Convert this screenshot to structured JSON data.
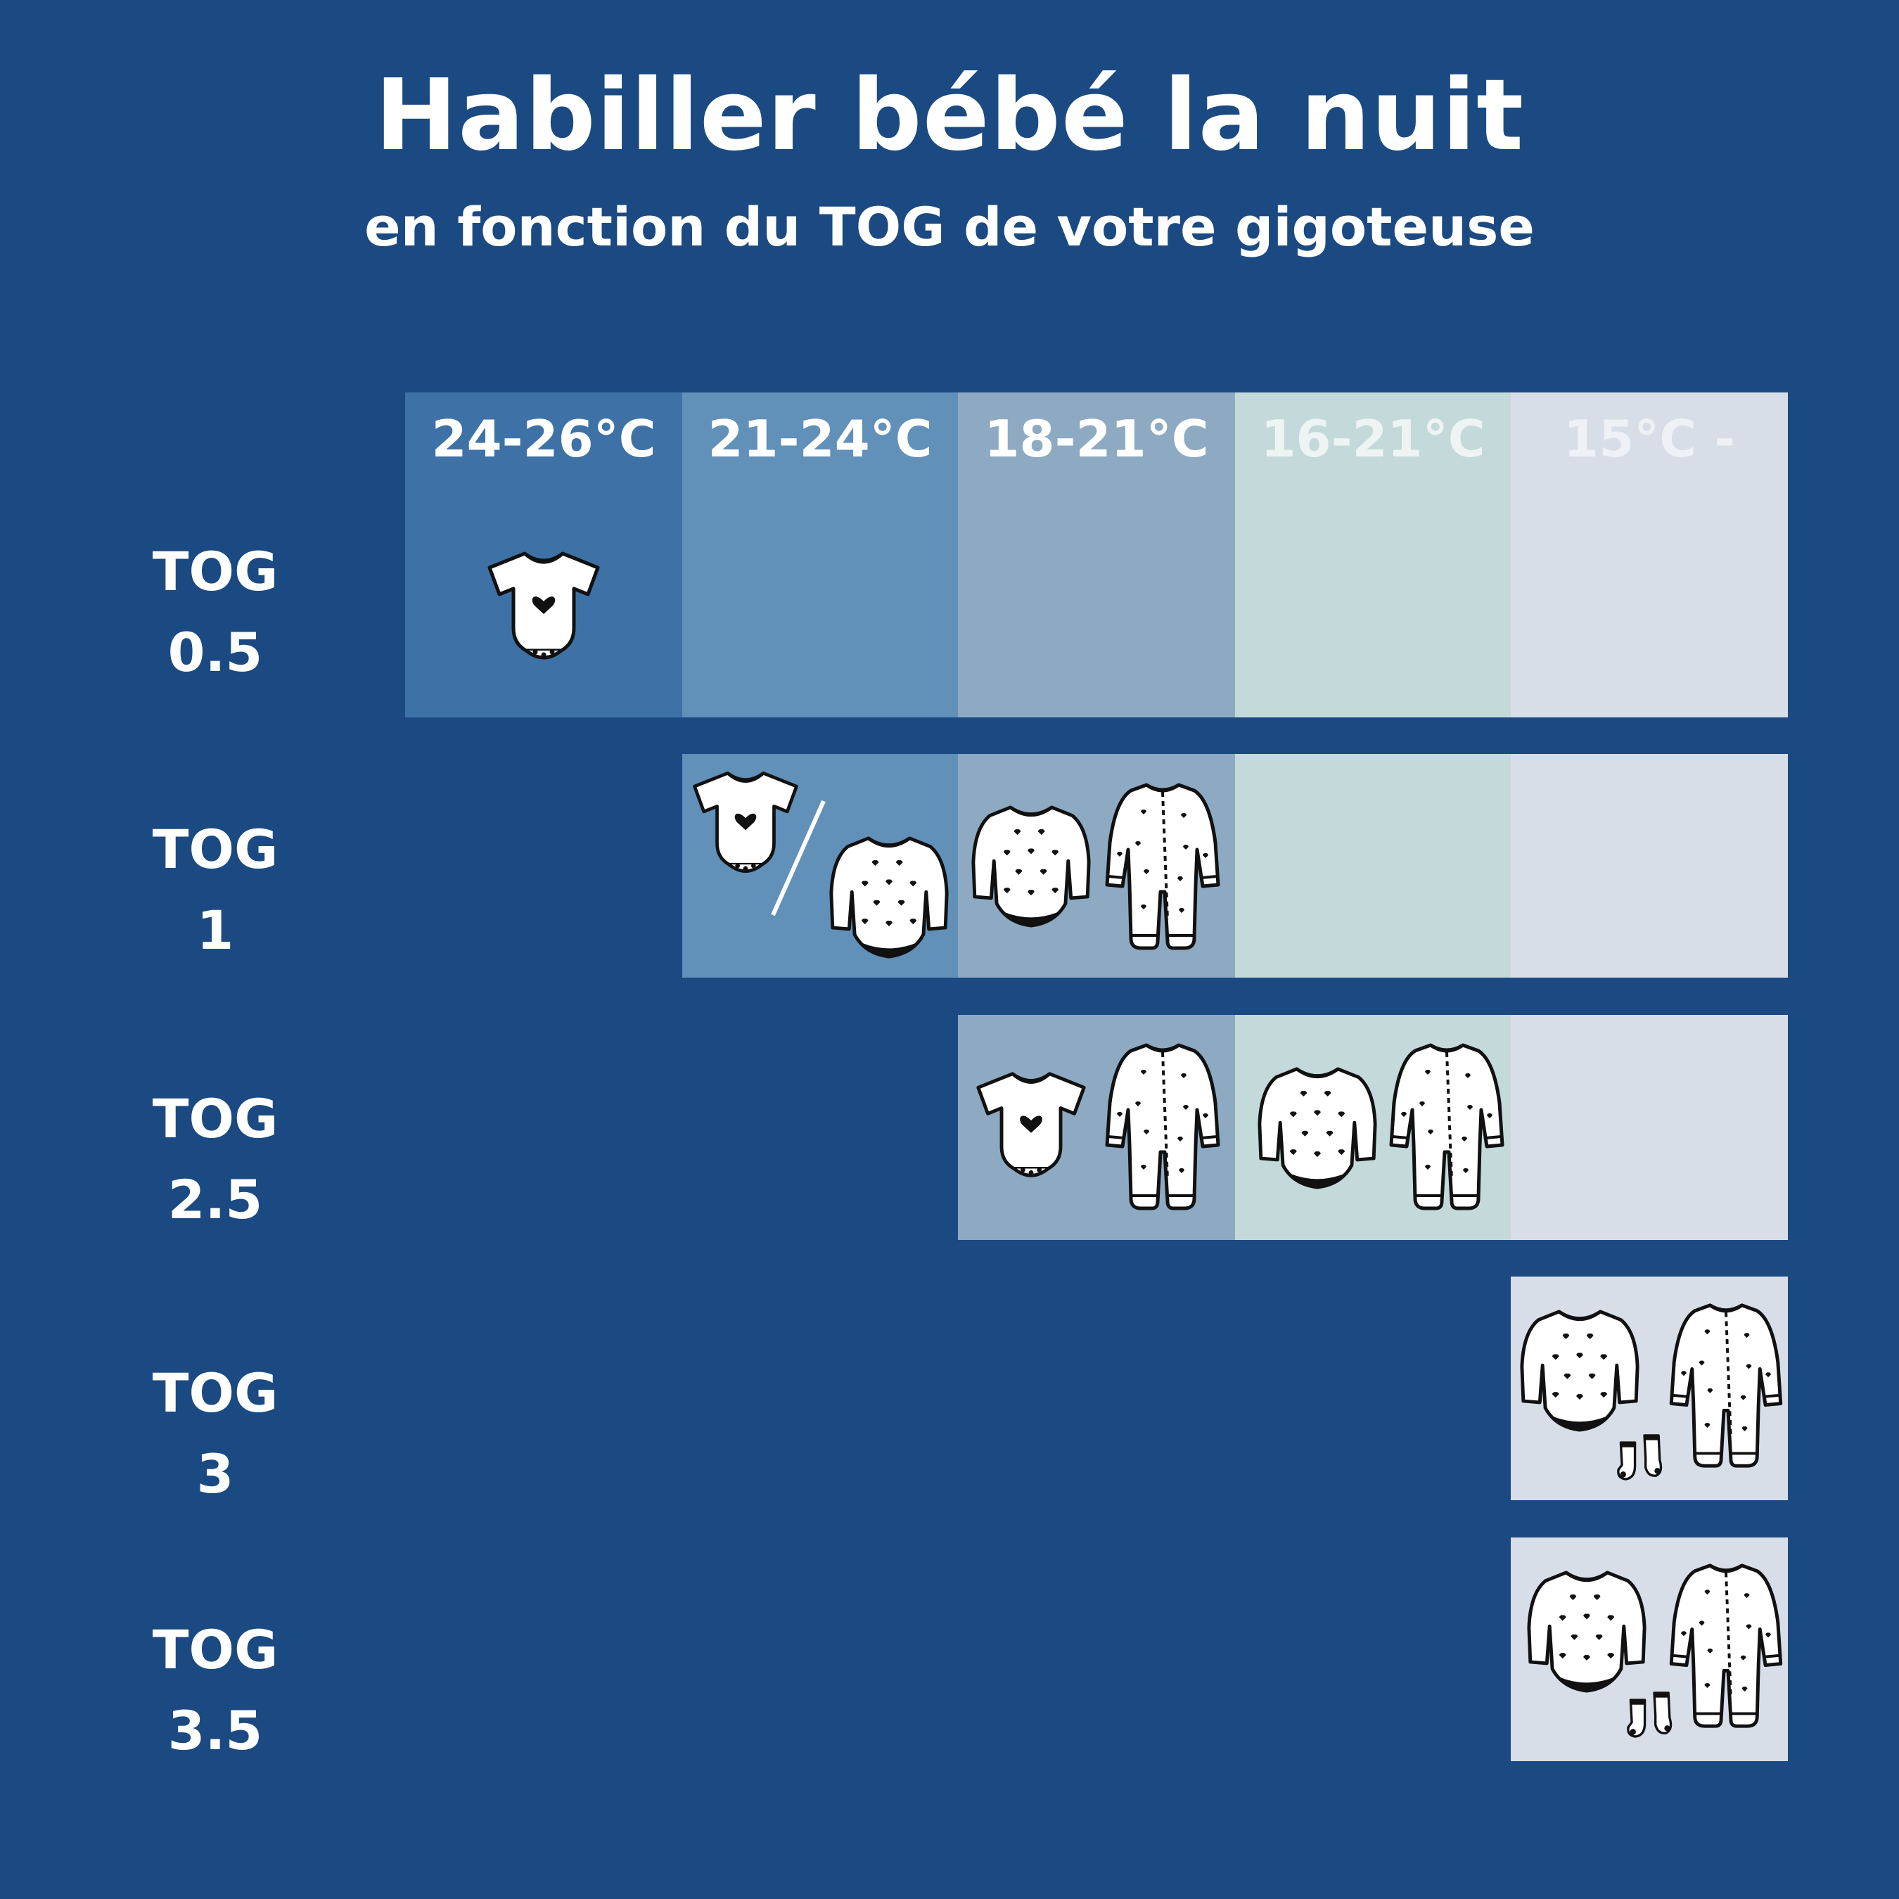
{
  "title": "Habiller bébé la nuit",
  "subtitle": "en fonction du TOG de votre gigoteuse",
  "columns": [
    {
      "label": "24-26°C",
      "color": "#3e72a6",
      "text_color": "#ffffff"
    },
    {
      "label": "21-24°C",
      "color": "#6190b8",
      "text_color": "#ffffff"
    },
    {
      "label": "18-21°C",
      "color": "#8eaac2",
      "text_color": "#ffffff"
    },
    {
      "label": "16-21°C",
      "color": "#c4dada",
      "text_color": "#eef4f4"
    },
    {
      "label": "15°C -",
      "color": "#d8dee7",
      "text_color": "#eef1f5"
    }
  ],
  "rows": [
    {
      "tog": "TOG",
      "value": "0.5"
    },
    {
      "tog": "TOG",
      "value": "1"
    },
    {
      "tog": "TOG",
      "value": "2.5"
    },
    {
      "tog": "TOG",
      "value": "3"
    },
    {
      "tog": "TOG",
      "value": "3.5"
    }
  ],
  "icons": {
    "short_bodysuit": "short-sleeve-bodysuit-icon",
    "long_bodysuit": "long-sleeve-bodysuit-icon",
    "pajamas": "footed-pajamas-icon",
    "socks": "socks-icon"
  }
}
